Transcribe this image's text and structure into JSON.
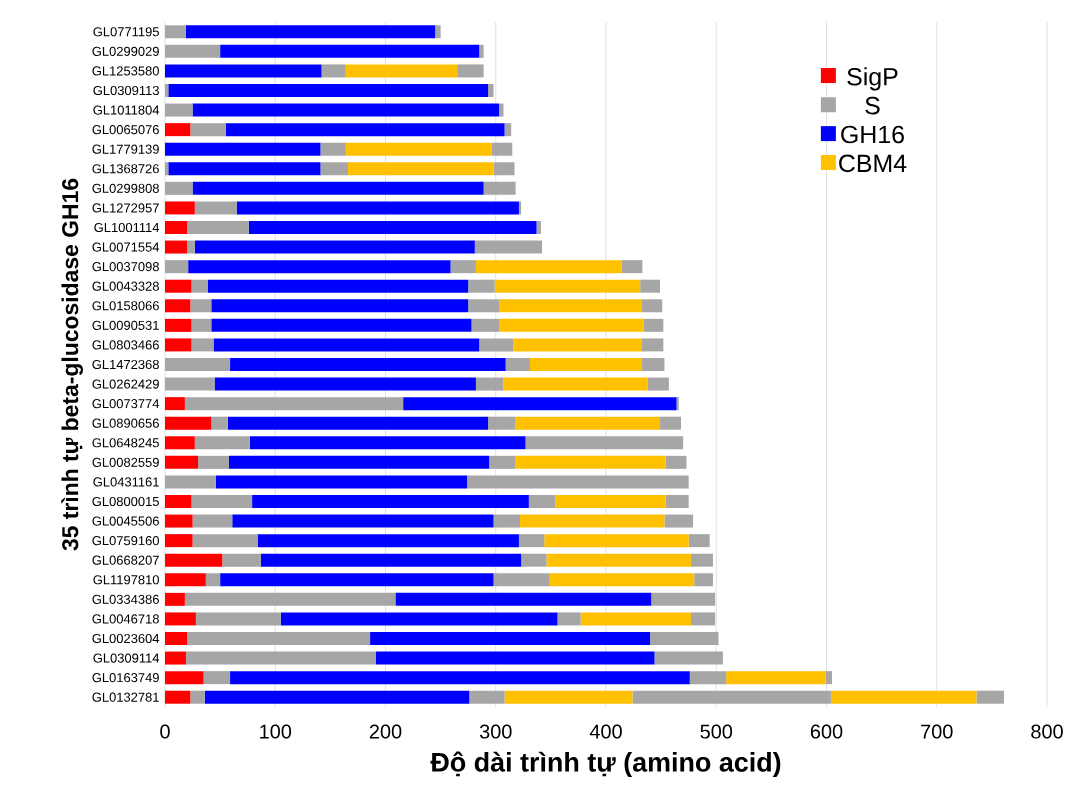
{
  "chart_data": {
    "type": "bar",
    "orientation": "horizontal",
    "stacked": true,
    "xlabel": "Độ dài trình tự (amino acid)",
    "ylabel": "35 trình tự beta-glucosidase GH16",
    "categories": [
      "GL0771195",
      "GL0299029",
      "GL1253580",
      "GL0309113",
      "GL1011804",
      "GL0065076",
      "GL1779139",
      "GL1368726",
      "GL0299808",
      "GL1272957",
      "GL1001114",
      "GL0071554",
      "GL0037098",
      "GL0043328",
      "GL0158066",
      "GL0090531",
      "GL0803466",
      "GL1472368",
      "GL0262429",
      "GL0073774",
      "GL0890656",
      "GL0648245",
      "GL0082559",
      "GL0431161",
      "GL0800015",
      "GL0045506",
      "GL0759160",
      "GL0668207",
      "GL1197810",
      "GL0334386",
      "GL0046718",
      "GL0023604",
      "GL0309114",
      "GL0163749",
      "GL0132781"
    ],
    "series": [
      {
        "name": "SigP",
        "color": "#ff0000",
        "values": [
          null,
          null,
          null,
          null,
          null,
          23,
          null,
          null,
          null,
          27,
          20,
          20,
          null,
          24,
          23,
          24,
          24,
          null,
          null,
          18,
          42,
          27,
          30,
          null,
          24,
          25,
          25,
          52,
          37,
          18,
          28,
          20,
          19,
          35,
          23
        ]
      },
      {
        "name": "S",
        "color": "#a6a6a6",
        "values": [
          19,
          50,
          null,
          3,
          25,
          32,
          null,
          3,
          25,
          38,
          56,
          7,
          21,
          15,
          19,
          18,
          20,
          59,
          45,
          198,
          15,
          50,
          28,
          46,
          55,
          36,
          59,
          35,
          13,
          191,
          77,
          166,
          172,
          24,
          13
        ]
      },
      {
        "name": "GH16",
        "color": "#0000ff",
        "values": [
          226,
          235,
          142,
          290,
          278,
          253,
          141,
          138,
          264,
          256,
          261,
          254,
          238,
          236,
          233,
          236,
          241,
          250,
          237,
          248,
          236,
          250,
          236,
          228,
          251,
          237,
          237,
          236,
          248,
          232,
          251,
          254,
          253,
          417,
          240
        ]
      },
      {
        "color": "#a6a6a6",
        "values": [
          5,
          4,
          22,
          5,
          4,
          6,
          23,
          25,
          29,
          2,
          4,
          61,
          23,
          24,
          28,
          25,
          31,
          22,
          25,
          2,
          25,
          143,
          24,
          201,
          24,
          24,
          23,
          23,
          51,
          58,
          21,
          62,
          62,
          33,
          32
        ]
      },
      {
        "name": "CBM4",
        "color": "#ffc000",
        "values": [
          null,
          null,
          101,
          null,
          null,
          null,
          132,
          132,
          null,
          null,
          null,
          null,
          132,
          132,
          129,
          131,
          116,
          101,
          131,
          null,
          131,
          null,
          136,
          null,
          100,
          131,
          131,
          131,
          131,
          null,
          100,
          null,
          null,
          90,
          116
        ]
      },
      {
        "color": "#a6a6a6",
        "values": [
          null,
          null,
          24,
          null,
          null,
          null,
          19,
          19,
          null,
          null,
          null,
          null,
          19,
          18,
          19,
          18,
          20,
          21,
          19,
          null,
          19,
          null,
          19,
          null,
          21,
          26,
          19,
          20,
          17,
          null,
          22,
          null,
          null,
          6,
          180
        ]
      },
      {
        "color": "#ffc000",
        "values": [
          null,
          null,
          null,
          null,
          null,
          null,
          null,
          null,
          null,
          null,
          null,
          null,
          null,
          null,
          null,
          null,
          null,
          null,
          null,
          null,
          null,
          null,
          null,
          null,
          null,
          null,
          null,
          null,
          null,
          null,
          null,
          null,
          null,
          null,
          132
        ]
      },
      {
        "color": "#a6a6a6",
        "values": [
          null,
          null,
          null,
          null,
          null,
          null,
          null,
          null,
          null,
          null,
          null,
          null,
          null,
          null,
          null,
          null,
          null,
          null,
          null,
          null,
          null,
          null,
          null,
          null,
          null,
          null,
          null,
          null,
          null,
          null,
          null,
          null,
          null,
          null,
          25
        ]
      }
    ],
    "xlim": [
      0,
      800
    ],
    "xticks": [
      0,
      100,
      200,
      300,
      400,
      500,
      600,
      700,
      800
    ],
    "grid": "x",
    "legend": "top right"
  }
}
